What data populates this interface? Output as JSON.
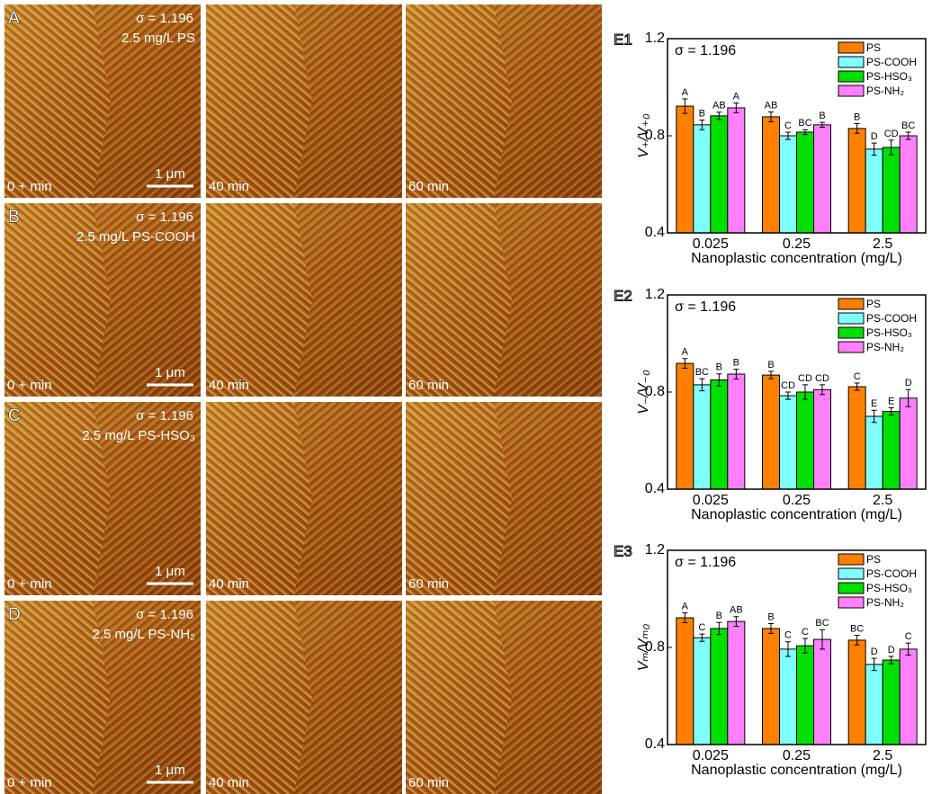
{
  "afm_panels": [
    {
      "letter": "A",
      "sigma": "σ = 1.196",
      "sample": "2.5 mg/L PS",
      "scale_bar": "1 μm",
      "times": [
        "0 + min",
        "40 min",
        "60 min"
      ]
    },
    {
      "letter": "B",
      "sigma": "σ = 1.196",
      "sample": "2.5 mg/L PS-COOH",
      "scale_bar": "1 μm",
      "times": [
        "0 + min",
        "40 min",
        "60 min"
      ]
    },
    {
      "letter": "C",
      "sigma": "σ = 1.196",
      "sample": "2.5 mg/L PS-HSO₃",
      "scale_bar": "1 μm",
      "times": [
        "0 + min",
        "40 min",
        "60 min"
      ]
    },
    {
      "letter": "D",
      "sigma": "σ = 1.196",
      "sample": "2.5 mg/L PS-NH₂",
      "scale_bar": "1 μm",
      "times": [
        "0 + min",
        "40 min",
        "60 min"
      ]
    }
  ],
  "chart_data": [
    {
      "type": "bar",
      "panel_label": "E1",
      "annotation": "σ = 1.196",
      "ylabel": "V₊/V₊₀",
      "xlabel": "Nanoplastic concentration (mg/L)",
      "categories": [
        "0.025",
        "0.25",
        "2.5"
      ],
      "ylim": [
        0.4,
        1.2
      ],
      "yticks": [
        0.4,
        0.8,
        1.2
      ],
      "legend": "top-right",
      "series": [
        {
          "name": "PS",
          "color": "#ff8000",
          "values": [
            0.922,
            0.878,
            0.83
          ],
          "errors": [
            0.03,
            0.02,
            0.02
          ],
          "group_labels": [
            "A",
            "AB",
            "B"
          ]
        },
        {
          "name": "PS-COOH",
          "color": "#80ffff",
          "values": [
            0.845,
            0.8,
            0.745
          ],
          "errors": [
            0.02,
            0.015,
            0.025
          ],
          "group_labels": [
            "B",
            "C",
            "D"
          ]
        },
        {
          "name": "PS-HSO₃",
          "color": "#00e000",
          "values": [
            0.882,
            0.815,
            0.752
          ],
          "errors": [
            0.015,
            0.01,
            0.03
          ],
          "group_labels": [
            "AB",
            "BC",
            "CD"
          ]
        },
        {
          "name": "PS-NH₂",
          "color": "#ff80ff",
          "values": [
            0.915,
            0.845,
            0.8
          ],
          "errors": [
            0.02,
            0.01,
            0.015
          ],
          "group_labels": [
            "A",
            "B",
            "BC"
          ]
        }
      ]
    },
    {
      "type": "bar",
      "panel_label": "E2",
      "annotation": "σ = 1.196",
      "ylabel": "V₋/V₋₀",
      "xlabel": "Nanoplastic concentration (mg/L)",
      "categories": [
        "0.025",
        "0.25",
        "2.5"
      ],
      "ylim": [
        0.4,
        1.2
      ],
      "yticks": [
        0.4,
        0.8,
        1.2
      ],
      "legend": "top-right",
      "series": [
        {
          "name": "PS",
          "color": "#ff8000",
          "values": [
            0.918,
            0.87,
            0.822
          ],
          "errors": [
            0.02,
            0.015,
            0.015
          ],
          "group_labels": [
            "A",
            "B",
            "C"
          ]
        },
        {
          "name": "PS-COOH",
          "color": "#80ffff",
          "values": [
            0.83,
            0.785,
            0.7
          ],
          "errors": [
            0.025,
            0.015,
            0.025
          ],
          "group_labels": [
            "BC",
            "CD",
            "E"
          ]
        },
        {
          "name": "PS-HSO₃",
          "color": "#00e000",
          "values": [
            0.85,
            0.8,
            0.72
          ],
          "errors": [
            0.025,
            0.03,
            0.015
          ],
          "group_labels": [
            "B",
            "CD",
            "E"
          ]
        },
        {
          "name": "PS-NH₂",
          "color": "#ff80ff",
          "values": [
            0.874,
            0.81,
            0.775
          ],
          "errors": [
            0.02,
            0.02,
            0.035
          ],
          "group_labels": [
            "B",
            "CD",
            "D"
          ]
        }
      ]
    },
    {
      "type": "bar",
      "panel_label": "E3",
      "annotation": "σ = 1.196",
      "ylabel": "Vₘ/Vₘ₀",
      "xlabel": "Nanoplastic concentration (mg/L)",
      "categories": [
        "0.025",
        "0.25",
        "2.5"
      ],
      "ylim": [
        0.4,
        1.2
      ],
      "yticks": [
        0.4,
        0.8,
        1.2
      ],
      "legend": "top-right",
      "series": [
        {
          "name": "PS",
          "color": "#ff8000",
          "values": [
            0.922,
            0.878,
            0.83
          ],
          "errors": [
            0.02,
            0.02,
            0.02
          ],
          "group_labels": [
            "A",
            "B",
            "BC"
          ]
        },
        {
          "name": "PS-COOH",
          "color": "#80ffff",
          "values": [
            0.84,
            0.793,
            0.73
          ],
          "errors": [
            0.015,
            0.03,
            0.025
          ],
          "group_labels": [
            "C",
            "C",
            "D"
          ]
        },
        {
          "name": "PS-HSO₃",
          "color": "#00e000",
          "values": [
            0.878,
            0.807,
            0.748
          ],
          "errors": [
            0.025,
            0.03,
            0.015
          ],
          "group_labels": [
            "B",
            "C",
            "D"
          ]
        },
        {
          "name": "PS-NH₂",
          "color": "#ff80ff",
          "values": [
            0.907,
            0.833,
            0.793
          ],
          "errors": [
            0.02,
            0.04,
            0.025
          ],
          "group_labels": [
            "AB",
            "BC",
            "C"
          ]
        }
      ]
    }
  ]
}
